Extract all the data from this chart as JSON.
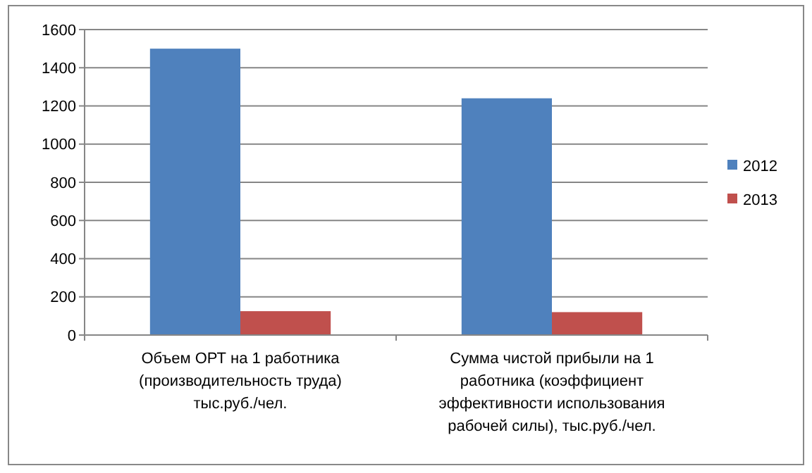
{
  "chart_data": {
    "type": "bar",
    "categories": [
      "Объем ОРТ на 1 работника (производительность труда) тыс.руб./чел.",
      "Сумма чистой прибыли на 1 работника (коэффициент эффективности использования рабочей силы), тыс.руб./чел."
    ],
    "series": [
      {
        "name": "2012",
        "color": "#4f81bd",
        "values": [
          1500,
          1240
        ]
      },
      {
        "name": "2013",
        "color": "#c0504d",
        "values": [
          125,
          120
        ]
      }
    ],
    "ylim": [
      0,
      1600
    ],
    "yticks": [
      0,
      200,
      400,
      600,
      800,
      1000,
      1200,
      1400,
      1600
    ],
    "grid": "y",
    "legend": "right"
  }
}
